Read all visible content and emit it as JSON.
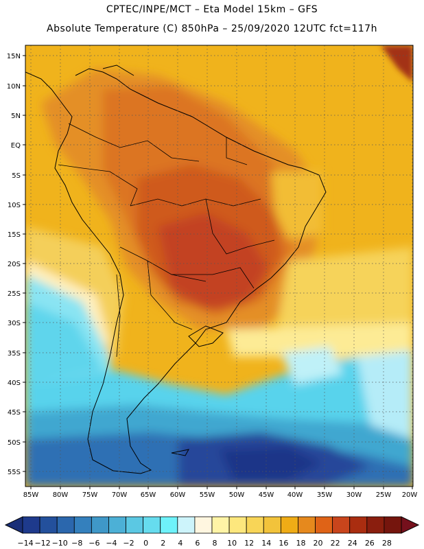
{
  "header": {
    "title_line1": "CPTEC/INPE/MCT –  Eta Model 15km – GFS",
    "title_line2": "Absolute Temperature (C) 850hPa – 25/09/2020 12UTC fct=117h"
  },
  "map": {
    "lat_labels": [
      "15N",
      "10N",
      "5N",
      "EQ",
      "5S",
      "10S",
      "15S",
      "20S",
      "25S",
      "30S",
      "35S",
      "40S",
      "45S",
      "50S",
      "55S"
    ],
    "lon_labels": [
      "85W",
      "80W",
      "75W",
      "70W",
      "65W",
      "60W",
      "55W",
      "50W",
      "45W",
      "40W",
      "35W",
      "30W",
      "25W",
      "20W"
    ]
  },
  "colorbar": {
    "labels": [
      "−14",
      "−12",
      "−10",
      "−8",
      "−6",
      "−4",
      "−2",
      "0",
      "2",
      "4",
      "6",
      "8",
      "10",
      "12",
      "14",
      "16",
      "18",
      "20",
      "22",
      "24",
      "26",
      "28"
    ],
    "colors": [
      "#1e3a8c",
      "#23509c",
      "#2b67ad",
      "#3480bd",
      "#3f98c8",
      "#4cb0d6",
      "#5bc8e3",
      "#66dcee",
      "#6ef2fa",
      "#cdf4fb",
      "#fff6e0",
      "#fff4a6",
      "#fde77d",
      "#f8d557",
      "#f2c33b",
      "#efac16",
      "#e6891d",
      "#df6317",
      "#c9451c",
      "#aa2d10",
      "#8a1e0e",
      "#75150d"
    ],
    "low_arrow_color": "#1a2f78",
    "high_arrow_color": "#75101c"
  },
  "palette": {
    "ocean_warm": "#f0b31c",
    "land_hot": "#d9661b",
    "core_hot": "#c6471d",
    "mid_cold": "#5bd4ec",
    "deep_cold": "#25469a",
    "deepest": "#1c3488",
    "grid": "#555555",
    "coast": "#000000"
  }
}
